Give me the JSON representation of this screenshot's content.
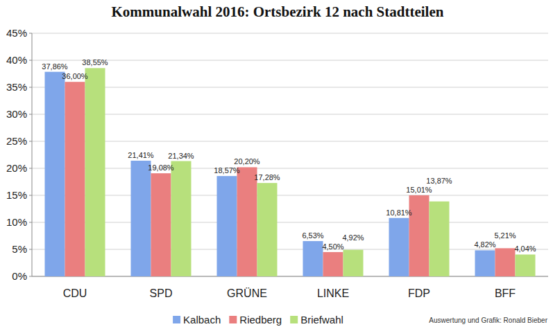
{
  "chart_data": {
    "type": "bar",
    "title": "Kommunalwahl 2016: Ortsbezirk 12 nach Stadtteilen",
    "categories": [
      "CDU",
      "SPD",
      "GRÜNE",
      "LINKE",
      "FDP",
      "BFF"
    ],
    "series": [
      {
        "name": "Kalbach",
        "color": "#7fa6ea",
        "values": [
          37.86,
          21.41,
          18.57,
          6.53,
          10.81,
          4.82
        ],
        "value_labels": [
          "37,86%",
          "21,41%",
          "18,57%",
          "6,53%",
          "10,81%",
          "4,82%"
        ]
      },
      {
        "name": "Riedberg",
        "color": "#ea7f7f",
        "values": [
          36.0,
          19.08,
          20.2,
          4.5,
          15.01,
          5.21
        ],
        "value_labels": [
          "36,00%",
          "19,08%",
          "20,20%",
          "4,50%",
          "15,01%",
          "5,21%"
        ]
      },
      {
        "name": "Briefwahl",
        "color": "#b7e07c",
        "values": [
          38.55,
          21.34,
          17.28,
          4.92,
          13.87,
          4.04
        ],
        "value_labels": [
          "38,55%",
          "21,34%",
          "17,28%",
          "4,92%",
          "13,87%",
          "4,04%"
        ]
      }
    ],
    "ylim": [
      0,
      45
    ],
    "yticks": [
      {
        "value": 0,
        "label": "0%"
      },
      {
        "value": 5,
        "label": "5%"
      },
      {
        "value": 10,
        "label": "10%"
      },
      {
        "value": 15,
        "label": "15%"
      },
      {
        "value": 20,
        "label": "20%"
      },
      {
        "value": 25,
        "label": "25%"
      },
      {
        "value": 30,
        "label": "30%"
      },
      {
        "value": 35,
        "label": "35%"
      },
      {
        "value": 40,
        "label": "40%"
      },
      {
        "value": 45,
        "label": "45%"
      }
    ],
    "grid": true,
    "legend": "bottom",
    "data_labels": true,
    "annotations": [
      "Auswertung und Grafik: Ronald Bieber"
    ]
  }
}
